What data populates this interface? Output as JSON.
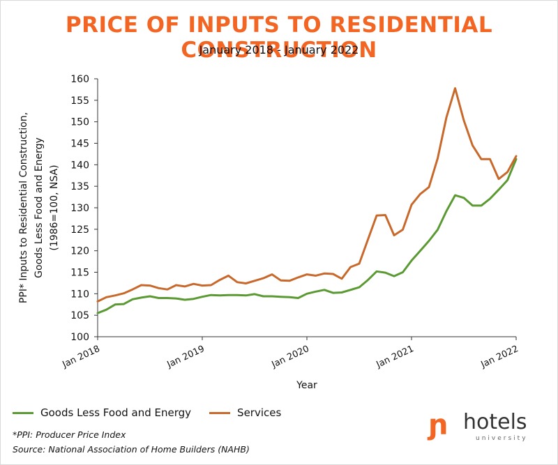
{
  "header": {
    "title": "PRICE OF INPUTS TO RESIDENTIAL CONSTRUCTION",
    "subtitle": "January 2018 - January 2022"
  },
  "chart_data": {
    "type": "line",
    "title": "PRICE OF INPUTS TO RESIDENTIAL CONSTRUCTION",
    "subtitle": "January 2018 - January 2022",
    "xlabel": "Year",
    "ylabel_lines": [
      "PPI* Inputs to Residential Construction,",
      "Goods Less Food and Energy",
      "(1986=100, NSA)"
    ],
    "ylim": [
      100,
      160
    ],
    "yticks": [
      100,
      105,
      110,
      115,
      120,
      125,
      130,
      135,
      140,
      145,
      150,
      155,
      160
    ],
    "x_start": "2018-01",
    "x_end": "2022-01",
    "x": [
      "2018-01",
      "2018-02",
      "2018-03",
      "2018-04",
      "2018-05",
      "2018-06",
      "2018-07",
      "2018-08",
      "2018-09",
      "2018-10",
      "2018-11",
      "2018-12",
      "2019-01",
      "2019-02",
      "2019-03",
      "2019-04",
      "2019-05",
      "2019-06",
      "2019-07",
      "2019-08",
      "2019-09",
      "2019-10",
      "2019-11",
      "2019-12",
      "2020-01",
      "2020-02",
      "2020-03",
      "2020-04",
      "2020-05",
      "2020-06",
      "2020-07",
      "2020-08",
      "2020-09",
      "2020-10",
      "2020-11",
      "2020-12",
      "2021-01",
      "2021-02",
      "2021-03",
      "2021-04",
      "2021-05",
      "2021-06",
      "2021-07",
      "2021-08",
      "2021-09",
      "2021-10",
      "2021-11",
      "2021-12",
      "2022-01"
    ],
    "xticks": [
      {
        "label": "Jan 2018",
        "date": "2018-01"
      },
      {
        "label": "Jan 2019",
        "date": "2019-01"
      },
      {
        "label": "Jan 2020",
        "date": "2020-01"
      },
      {
        "label": "Jan 2021",
        "date": "2021-01"
      },
      {
        "label": "Jan 2022",
        "date": "2022-01"
      }
    ],
    "grid": false,
    "legend_position": "bottom-left",
    "series": [
      {
        "name": "Goods Less Food and Energy",
        "color": "#5b9a32",
        "values": [
          105.5,
          106.3,
          107.5,
          107.6,
          108.7,
          109.1,
          109.4,
          109.0,
          109.0,
          108.9,
          108.6,
          108.8,
          109.3,
          109.7,
          109.6,
          109.7,
          109.7,
          109.6,
          109.9,
          109.4,
          109.4,
          109.3,
          109.2,
          109.0,
          110.0,
          110.5,
          110.9,
          110.2,
          110.3,
          110.9,
          111.5,
          113.2,
          115.2,
          114.9,
          114.1,
          115.0,
          117.7,
          120.0,
          122.3,
          124.9,
          129.2,
          132.9,
          132.3,
          130.5,
          130.5,
          132.1,
          134.2,
          136.4,
          141.3
        ]
      },
      {
        "name": "Services",
        "color": "#c8692b",
        "values": [
          108.2,
          109.2,
          109.6,
          110.1,
          111.0,
          112.0,
          111.9,
          111.3,
          111.0,
          112.0,
          111.7,
          112.3,
          111.9,
          112.0,
          113.2,
          114.2,
          112.7,
          112.4,
          113.0,
          113.6,
          114.5,
          113.1,
          113.0,
          113.8,
          114.5,
          114.2,
          114.7,
          114.6,
          113.5,
          116.2,
          117.0,
          122.6,
          128.2,
          128.3,
          123.6,
          124.9,
          130.7,
          133.2,
          134.8,
          141.5,
          151.0,
          157.8,
          150.3,
          144.5,
          141.3,
          141.3,
          136.7,
          138.3,
          142.0
        ]
      }
    ]
  },
  "legend": {
    "items": [
      {
        "label": "Goods Less Food and Energy",
        "color": "#5b9a32"
      },
      {
        "label": "Services",
        "color": "#c8692b"
      }
    ]
  },
  "footnotes": {
    "ppi": "*PPI: Producer Price Index",
    "source": "Source: National Association of Home Builders (NAHB)"
  },
  "logo": {
    "text": "hotels",
    "sub": "university"
  }
}
